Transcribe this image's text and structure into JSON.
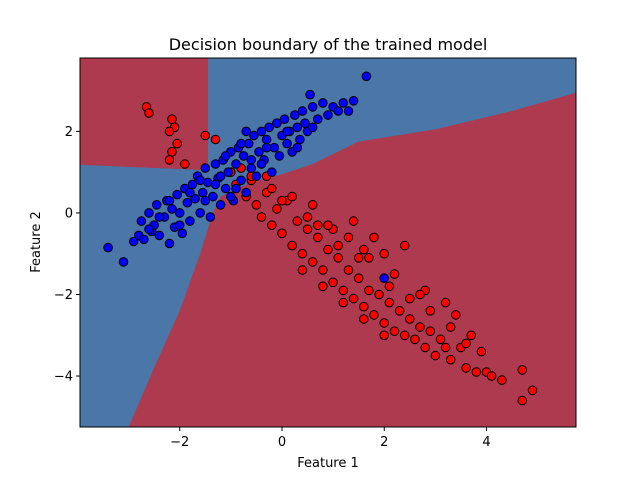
{
  "chart_data": {
    "type": "scatter",
    "title": "Decision boundary of the trained model",
    "xlabel": "Feature 1",
    "ylabel": "Feature 2",
    "xlim": [
      -3.95,
      5.75
    ],
    "ylim": [
      -5.25,
      3.8
    ],
    "xticks": [
      -2,
      0,
      2,
      4
    ],
    "yticks": [
      -4,
      -2,
      0,
      2
    ],
    "grid": false,
    "legend": "none",
    "colors": {
      "class_blue_region": "#4a77a8",
      "class_red_region": "#ad3a4f",
      "blue_point": "#0000ff",
      "red_point": "#ff0000",
      "point_edge": "#000000"
    },
    "regions": [
      {
        "class": "red",
        "polygon": [
          [
            -3.95,
            3.8
          ],
          [
            -1.45,
            3.8
          ],
          [
            -1.45,
            1.05
          ],
          [
            -3.95,
            1.18
          ]
        ]
      },
      {
        "class": "red",
        "polygon": [
          [
            -1.45,
            1.05
          ],
          [
            -1.45,
            3.8
          ],
          [
            5.75,
            3.8
          ],
          [
            5.75,
            -5.25
          ],
          [
            -3.0,
            -5.25
          ],
          [
            -1.3,
            0.0
          ]
        ]
      }
    ],
    "boundary_blue_polygon": [
      [
        -3.95,
        1.18
      ],
      [
        -1.45,
        1.05
      ],
      [
        -1.45,
        3.8
      ],
      [
        5.75,
        3.8
      ],
      [
        5.75,
        2.95
      ],
      [
        4.5,
        2.5
      ],
      [
        3.0,
        2.05
      ],
      [
        1.5,
        1.75
      ],
      [
        0.6,
        1.2
      ],
      [
        0.0,
        0.95
      ],
      [
        -0.6,
        0.75
      ],
      [
        -1.2,
        0.4
      ],
      [
        -1.35,
        0.0
      ],
      [
        -1.6,
        -1.0
      ],
      [
        -2.0,
        -2.4
      ],
      [
        -2.5,
        -3.8
      ],
      [
        -3.0,
        -5.25
      ],
      [
        -3.95,
        -5.25
      ]
    ],
    "series": [
      {
        "class": "blue",
        "color": "#0000ff",
        "points": [
          [
            -3.4,
            -0.85
          ],
          [
            -3.1,
            -1.2
          ],
          [
            -2.9,
            -0.7
          ],
          [
            -2.8,
            -0.55
          ],
          [
            -2.75,
            -0.2
          ],
          [
            -2.7,
            -0.65
          ],
          [
            -2.6,
            0.0
          ],
          [
            -2.55,
            -0.45
          ],
          [
            -2.5,
            -0.3
          ],
          [
            -2.45,
            0.2
          ],
          [
            -2.4,
            -0.55
          ],
          [
            -2.3,
            -0.1
          ],
          [
            -2.25,
            0.3
          ],
          [
            -2.2,
            -0.75
          ],
          [
            -2.15,
            0.1
          ],
          [
            -2.1,
            -0.35
          ],
          [
            -2.05,
            0.45
          ],
          [
            -2.0,
            0.0
          ],
          [
            -1.95,
            -0.5
          ],
          [
            -1.9,
            0.6
          ],
          [
            -1.85,
            0.25
          ],
          [
            -1.8,
            -0.2
          ],
          [
            -1.75,
            0.7
          ],
          [
            -1.7,
            0.35
          ],
          [
            -1.65,
            0.9
          ],
          [
            -1.6,
            0.0
          ],
          [
            -1.55,
            0.5
          ],
          [
            -1.5,
            1.1
          ],
          [
            -1.45,
            0.75
          ],
          [
            -1.4,
            -0.1
          ],
          [
            -1.35,
            0.4
          ],
          [
            -1.3,
            1.2
          ],
          [
            -1.25,
            0.85
          ],
          [
            -1.2,
            0.2
          ],
          [
            -1.15,
            1.3
          ],
          [
            -1.1,
            0.6
          ],
          [
            -1.05,
            1.0
          ],
          [
            -1.0,
            1.5
          ],
          [
            -0.95,
            0.3
          ],
          [
            -0.9,
            1.2
          ],
          [
            -0.85,
            1.6
          ],
          [
            -0.8,
            0.8
          ],
          [
            -0.75,
            1.4
          ],
          [
            -0.7,
            0.5
          ],
          [
            -0.65,
            1.7
          ],
          [
            -0.6,
            1.1
          ],
          [
            -0.55,
            1.9
          ],
          [
            -0.5,
            0.9
          ],
          [
            -0.45,
            1.5
          ],
          [
            -0.4,
            2.0
          ],
          [
            -0.35,
            1.3
          ],
          [
            -0.3,
            1.8
          ],
          [
            -0.25,
            2.1
          ],
          [
            -0.2,
            1.0
          ],
          [
            -0.15,
            1.6
          ],
          [
            -0.1,
            2.2
          ],
          [
            -0.05,
            1.4
          ],
          [
            0.0,
            1.9
          ],
          [
            0.05,
            2.3
          ],
          [
            0.1,
            1.7
          ],
          [
            0.15,
            2.0
          ],
          [
            0.2,
            1.5
          ],
          [
            0.25,
            2.4
          ],
          [
            0.3,
            2.1
          ],
          [
            0.35,
            1.8
          ],
          [
            0.4,
            2.5
          ],
          [
            0.45,
            2.2
          ],
          [
            0.5,
            2.0
          ],
          [
            0.55,
            2.9
          ],
          [
            0.6,
            2.6
          ],
          [
            0.7,
            2.3
          ],
          [
            0.8,
            2.7
          ],
          [
            0.9,
            2.4
          ],
          [
            1.0,
            2.6
          ],
          [
            1.1,
            2.5
          ],
          [
            1.2,
            2.7
          ],
          [
            1.3,
            2.5
          ],
          [
            1.4,
            2.75
          ],
          [
            1.65,
            3.35
          ],
          [
            2.0,
            -1.6
          ],
          [
            -0.9,
            0.6
          ],
          [
            -1.2,
            0.9
          ],
          [
            -0.6,
            1.3
          ],
          [
            -1.8,
            0.5
          ],
          [
            -2.2,
            0.3
          ],
          [
            -0.3,
            1.6
          ],
          [
            0.1,
            2.0
          ],
          [
            -1.0,
            0.4
          ],
          [
            -1.6,
            0.8
          ],
          [
            -2.4,
            -0.1
          ],
          [
            -0.8,
            1.7
          ],
          [
            -0.4,
            1.2
          ],
          [
            0.3,
            1.6
          ],
          [
            -1.3,
            0.7
          ],
          [
            -2.0,
            -0.3
          ],
          [
            -1.1,
            1.4
          ],
          [
            -0.7,
            2.0
          ],
          [
            0.6,
            2.1
          ],
          [
            -1.5,
            0.3
          ],
          [
            -2.6,
            -0.4
          ]
        ]
      },
      {
        "class": "red",
        "color": "#ff0000",
        "points": [
          [
            -2.65,
            2.6
          ],
          [
            -2.6,
            2.45
          ],
          [
            -2.15,
            2.3
          ],
          [
            -2.1,
            2.1
          ],
          [
            -2.05,
            1.7
          ],
          [
            -2.2,
            2.0
          ],
          [
            -2.15,
            1.5
          ],
          [
            -2.2,
            1.3
          ],
          [
            -1.9,
            1.2
          ],
          [
            -1.5,
            1.9
          ],
          [
            -1.3,
            1.8
          ],
          [
            -1.0,
            1.0
          ],
          [
            -0.9,
            0.7
          ],
          [
            -0.7,
            0.4
          ],
          [
            -0.6,
            0.8
          ],
          [
            -0.5,
            0.2
          ],
          [
            -0.4,
            -0.1
          ],
          [
            -0.3,
            0.5
          ],
          [
            -0.2,
            -0.3
          ],
          [
            -0.1,
            0.1
          ],
          [
            0.0,
            -0.5
          ],
          [
            0.1,
            0.3
          ],
          [
            0.2,
            -0.8
          ],
          [
            0.3,
            -0.2
          ],
          [
            0.4,
            -1.0
          ],
          [
            0.5,
            -0.4
          ],
          [
            0.6,
            -1.2
          ],
          [
            0.7,
            -0.6
          ],
          [
            0.8,
            -1.4
          ],
          [
            0.9,
            -0.9
          ],
          [
            1.0,
            -1.7
          ],
          [
            1.1,
            -1.1
          ],
          [
            1.2,
            -1.9
          ],
          [
            1.3,
            -1.4
          ],
          [
            1.4,
            -2.1
          ],
          [
            1.5,
            -1.6
          ],
          [
            1.6,
            -2.3
          ],
          [
            1.7,
            -1.9
          ],
          [
            1.8,
            -2.5
          ],
          [
            1.9,
            -2.0
          ],
          [
            2.0,
            -2.7
          ],
          [
            2.1,
            -2.2
          ],
          [
            2.2,
            -2.9
          ],
          [
            2.3,
            -2.4
          ],
          [
            2.4,
            -3.0
          ],
          [
            2.5,
            -2.6
          ],
          [
            2.6,
            -3.1
          ],
          [
            2.7,
            -2.8
          ],
          [
            2.8,
            -3.3
          ],
          [
            2.9,
            -2.9
          ],
          [
            3.0,
            -3.5
          ],
          [
            3.1,
            -3.1
          ],
          [
            3.2,
            -3.3
          ],
          [
            3.3,
            -3.6
          ],
          [
            3.4,
            -2.5
          ],
          [
            3.5,
            -3.3
          ],
          [
            3.6,
            -3.8
          ],
          [
            3.7,
            -3.0
          ],
          [
            3.8,
            -3.9
          ],
          [
            3.9,
            -3.4
          ],
          [
            4.0,
            -3.9
          ],
          [
            4.1,
            -4.0
          ],
          [
            4.3,
            -4.1
          ],
          [
            4.7,
            -3.85
          ],
          [
            4.7,
            -4.6
          ],
          [
            4.9,
            -4.35
          ],
          [
            2.4,
            -0.8
          ],
          [
            2.0,
            -1.0
          ],
          [
            1.4,
            -0.2
          ],
          [
            1.0,
            -0.4
          ],
          [
            0.6,
            0.2
          ],
          [
            0.2,
            0.4
          ],
          [
            -0.3,
            0.9
          ],
          [
            -0.8,
            1.1
          ],
          [
            1.6,
            -0.9
          ],
          [
            2.2,
            -1.5
          ],
          [
            2.8,
            -1.9
          ],
          [
            3.2,
            -2.2
          ],
          [
            0.5,
            -0.1
          ],
          [
            0.9,
            -0.3
          ],
          [
            1.3,
            -0.6
          ],
          [
            1.7,
            -1.1
          ],
          [
            2.1,
            -1.8
          ],
          [
            2.5,
            -2.1
          ],
          [
            2.9,
            -2.4
          ],
          [
            3.3,
            -2.8
          ],
          [
            3.6,
            -3.2
          ],
          [
            0.0,
            0.3
          ],
          [
            -0.6,
            0.9
          ],
          [
            0.4,
            -1.4
          ],
          [
            0.8,
            -1.8
          ],
          [
            1.2,
            -2.2
          ],
          [
            1.6,
            -2.6
          ],
          [
            2.0,
            -3.0
          ],
          [
            -0.2,
            0.6
          ],
          [
            1.8,
            -0.6
          ],
          [
            1.5,
            -1.1
          ],
          [
            1.1,
            -0.8
          ],
          [
            0.7,
            -0.3
          ],
          [
            2.7,
            -2.0
          ]
        ]
      }
    ]
  }
}
